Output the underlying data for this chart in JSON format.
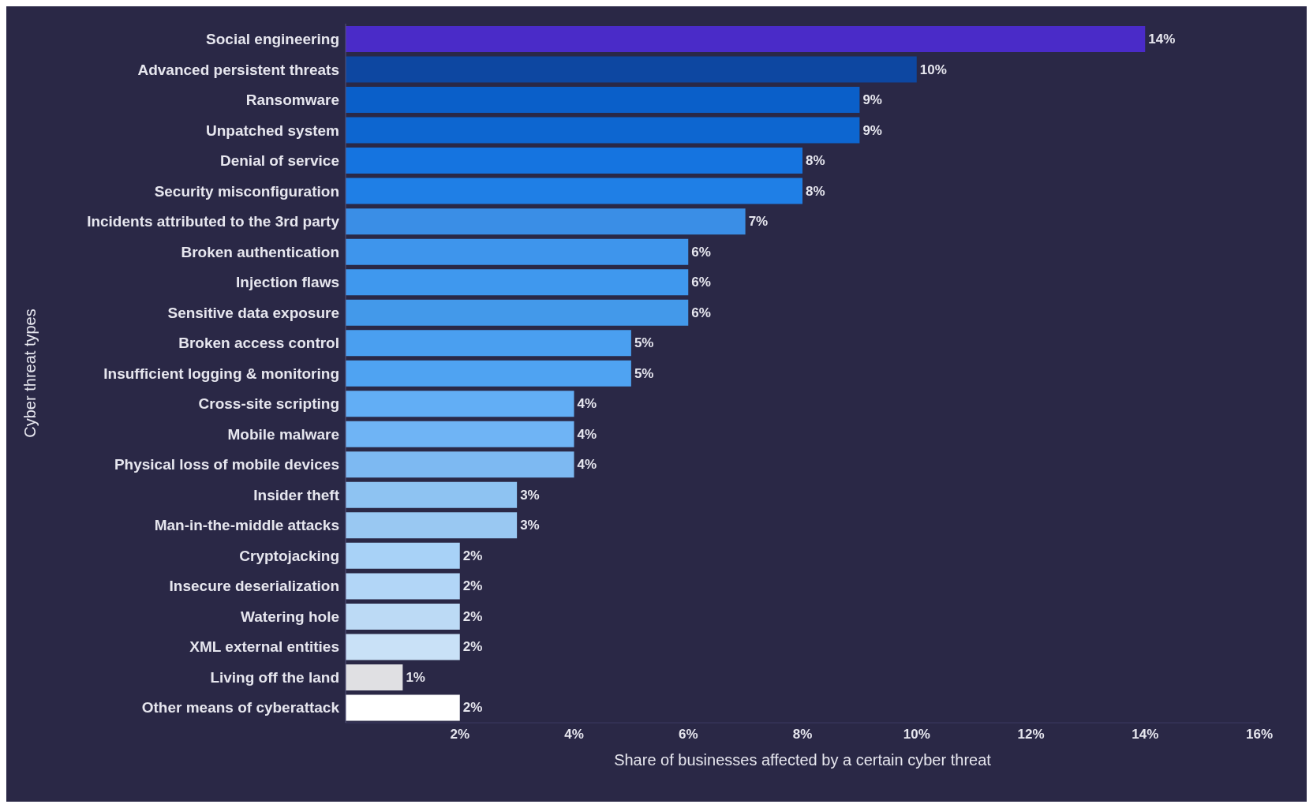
{
  "chart_data": {
    "type": "bar",
    "orientation": "horizontal",
    "xlabel": "Share of businesses affected by a certain cyber threat",
    "ylabel": "Cyber threat types",
    "categories": [
      "Social engineering",
      "Advanced persistent threats",
      "Ransomware",
      "Unpatched system",
      "Denial of service",
      "Security misconfiguration",
      "Incidents attributed to the 3rd party",
      "Broken authentication",
      "Injection flaws",
      "Sensitive data exposure",
      "Broken access control",
      "Insufficient logging & monitoring",
      "Cross-site scripting",
      "Mobile malware",
      "Physical loss of mobile devices",
      "Insider theft",
      "Man-in-the-middle attacks",
      "Cryptojacking",
      "Insecure deserialization",
      "Watering hole",
      "XML external entities",
      "Living off the land",
      "Other means of cyberattack"
    ],
    "values": [
      14,
      10,
      9,
      9,
      8,
      8,
      7,
      6,
      6,
      6,
      5,
      5,
      4,
      4,
      4,
      3,
      3,
      2,
      2,
      2,
      2,
      1,
      2
    ],
    "value_labels": [
      "14%",
      "10%",
      "9%",
      "9%",
      "8%",
      "8%",
      "7%",
      "6%",
      "6%",
      "6%",
      "5%",
      "5%",
      "4%",
      "4%",
      "4%",
      "3%",
      "3%",
      "2%",
      "2%",
      "2%",
      "2%",
      "1%",
      "2%"
    ],
    "colors": [
      "#4a2bc8",
      "#0d47a1",
      "#0a5fc9",
      "#0d66d0",
      "#1574e0",
      "#1f7fe6",
      "#3a8ee6",
      "#3e95ec",
      "#3f98ee",
      "#4399ea",
      "#4a9ff0",
      "#4fa3f2",
      "#62aef5",
      "#6fb4f5",
      "#7db9f2",
      "#8ec3f2",
      "#99c8f2",
      "#a8d2f7",
      "#b2d6f7",
      "#bcdaf5",
      "#c9e1f7",
      "#e0e0e3",
      "#ffffff"
    ],
    "xlim": [
      0,
      16
    ],
    "xticks": [
      {
        "value": 2,
        "label": "2%"
      },
      {
        "value": 4,
        "label": "4%"
      },
      {
        "value": 6,
        "label": "6%"
      },
      {
        "value": 8,
        "label": "8%"
      },
      {
        "value": 10,
        "label": "10%"
      },
      {
        "value": 12,
        "label": "12%"
      },
      {
        "value": 14,
        "label": "14%"
      },
      {
        "value": 16,
        "label": "16%"
      }
    ],
    "grid": false,
    "legend": false
  }
}
